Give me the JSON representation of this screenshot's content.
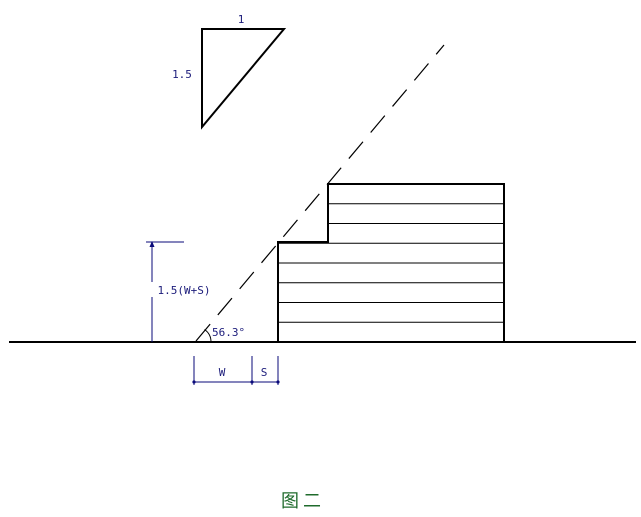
{
  "labels": {
    "ratio_run": "1",
    "ratio_rise": "1.5",
    "height": "1.5(W+S)",
    "angle": "56.3°",
    "width_w": "W",
    "width_s": "S"
  },
  "caption": "图二",
  "floor_lines": 7,
  "colors": {
    "structure": "#000000",
    "dimension": "#0a0a7a",
    "caption": "#1f6b2c"
  }
}
